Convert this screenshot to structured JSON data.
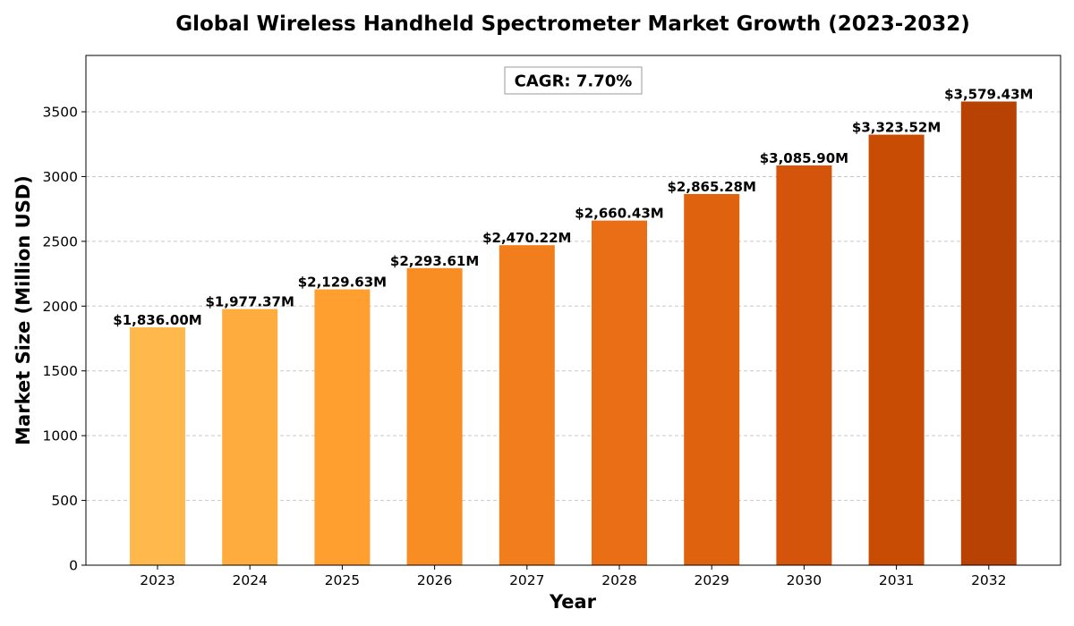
{
  "chart_data": {
    "type": "bar",
    "title": "Global Wireless Handheld Spectrometer Market Growth (2023-2032)",
    "xlabel": "Year",
    "ylabel": "Market Size (Million USD)",
    "categories": [
      "2023",
      "2024",
      "2025",
      "2026",
      "2027",
      "2028",
      "2029",
      "2030",
      "2031",
      "2032"
    ],
    "values": [
      1836.0,
      1977.37,
      2129.63,
      2293.61,
      2470.22,
      2660.43,
      2865.28,
      3085.9,
      3323.52,
      3579.43
    ],
    "data_labels": [
      "$1,836.00M",
      "$1,977.37M",
      "$2,129.63M",
      "$2,293.61M",
      "$2,470.22M",
      "$2,660.43M",
      "$2,865.28M",
      "$3,085.90M",
      "$3,323.52M",
      "$3,579.43M"
    ],
    "colors": [
      "#FEB84B",
      "#FEAC3D",
      "#FE9F30",
      "#F88D24",
      "#F27D1D",
      "#EA6E15",
      "#DF620F",
      "#D3540A",
      "#C84C04",
      "#B84204"
    ],
    "ylim": [
      0,
      3935
    ],
    "yticks": [
      0,
      500,
      1000,
      1500,
      2000,
      2500,
      3000,
      3500
    ],
    "grid": true,
    "grid_axis": "y",
    "annotation": "CAGR: 7.70%",
    "annotation_position": "top-center"
  }
}
